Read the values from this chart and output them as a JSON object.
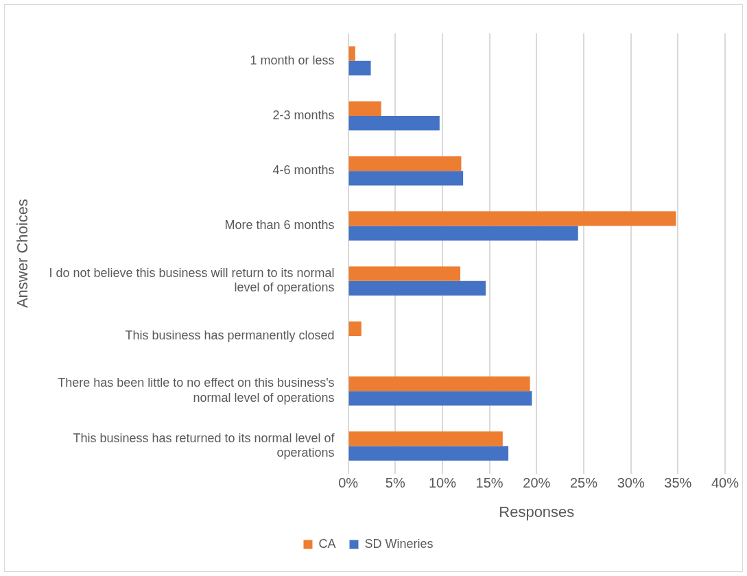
{
  "chart_data": {
    "type": "bar",
    "orientation": "horizontal",
    "xlabel": "Responses",
    "ylabel": "Answer Choices",
    "categories": [
      "1 month or less",
      "2-3 months",
      "4-6 months",
      "More than 6 months",
      "I do not believe this business will return to its normal level of operations",
      "This business has permanently closed",
      "There has been little to no effect on this business's normal level of operations",
      "This business has returned to its normal level of operations"
    ],
    "series": [
      {
        "name": "CA",
        "color": "#ed7d31",
        "values": [
          0.75,
          3.5,
          12.0,
          34.8,
          11.9,
          1.4,
          19.3,
          16.4
        ]
      },
      {
        "name": "SD Wineries",
        "color": "#4472c4",
        "values": [
          2.4,
          9.7,
          12.2,
          24.4,
          14.6,
          0,
          19.5,
          17.0
        ]
      }
    ],
    "xlim": [
      0,
      40
    ],
    "xticks": [
      {
        "value": 0,
        "label": "0%"
      },
      {
        "value": 5,
        "label": "5%"
      },
      {
        "value": 10,
        "label": "10%"
      },
      {
        "value": 15,
        "label": "15%"
      },
      {
        "value": 20,
        "label": "20%"
      },
      {
        "value": 25,
        "label": "25%"
      },
      {
        "value": 30,
        "label": "30%"
      },
      {
        "value": 35,
        "label": "35%"
      },
      {
        "value": 40,
        "label": "40%"
      }
    ],
    "grid": "x",
    "legend": "bottom"
  }
}
